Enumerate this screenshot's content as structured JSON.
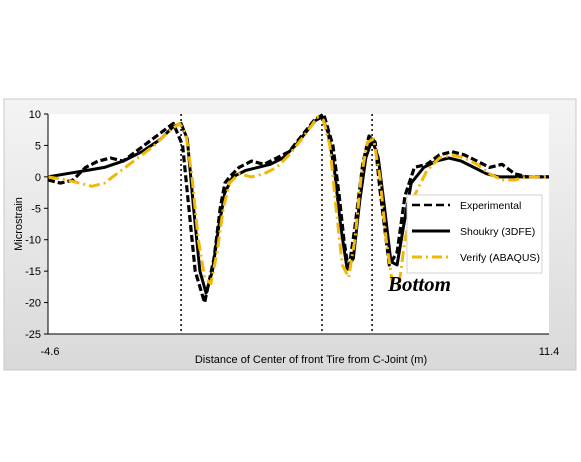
{
  "chart_data": {
    "type": "line",
    "title": "",
    "xlabel": "Distance of Center of front Tire from C-Joint (m)",
    "ylabel": "Microstrain",
    "xlim": [
      -4.6,
      11.4
    ],
    "ylim": [
      -25,
      10
    ],
    "x_tick_labels": [
      "-4.6",
      "11.4"
    ],
    "y_ticks": [
      10,
      5,
      0,
      -5,
      -10,
      -15,
      -20,
      -25
    ],
    "grid": "vertical dotted lines at the peaks",
    "legend_position": "right",
    "annotation": "Bottom",
    "colors": {
      "experimental": "#000000",
      "shoukry": "#000000",
      "verify": "#f2b707",
      "plot_bg": "#ffffff"
    },
    "series": [
      {
        "name": "Experimental",
        "style": "dashed",
        "x": [
          -4.6,
          -4.2,
          -3.8,
          -3.4,
          -3.0,
          -2.6,
          -2.2,
          -1.8,
          -1.4,
          -1.0,
          -0.6,
          -0.3,
          -0.1,
          0.1,
          0.4,
          0.7,
          0.9,
          1.05,
          1.2,
          1.5,
          1.9,
          2.3,
          2.7,
          3.1,
          3.5,
          3.9,
          4.2,
          4.5,
          4.7,
          4.85,
          5.0,
          5.2,
          5.45,
          5.65,
          5.85,
          6.0,
          6.3,
          6.55,
          6.8,
          7.1,
          7.5,
          7.9,
          8.3,
          8.7,
          9.1,
          9.5,
          9.9,
          10.3,
          10.7,
          11.0,
          11.4
        ],
        "y": [
          -0.5,
          -1.0,
          -0.5,
          1.5,
          2.5,
          3.0,
          2.5,
          4.0,
          5.5,
          7.0,
          8.5,
          5.0,
          -5.0,
          -15.0,
          -20.0,
          -13.0,
          -5.0,
          -1.0,
          0.0,
          1.5,
          2.5,
          2.0,
          3.0,
          4.0,
          6.5,
          9.0,
          10.0,
          5.0,
          -3.0,
          -10.0,
          -15.0,
          -8.0,
          2.0,
          6.5,
          5.5,
          -2.0,
          -14.0,
          -12.0,
          -3.0,
          1.5,
          2.0,
          3.5,
          4.0,
          3.5,
          2.5,
          1.5,
          2.0,
          0.5,
          0.0,
          0.0,
          0.0
        ]
      },
      {
        "name": "Shoukry (3DFE)",
        "style": "solid",
        "x": [
          -4.6,
          -4.0,
          -3.4,
          -2.8,
          -2.2,
          -1.6,
          -1.0,
          -0.6,
          -0.35,
          -0.15,
          0.05,
          0.25,
          0.45,
          0.65,
          0.85,
          1.05,
          1.3,
          1.7,
          2.1,
          2.5,
          2.9,
          3.3,
          3.7,
          3.95,
          4.15,
          4.35,
          4.55,
          4.75,
          4.95,
          5.15,
          5.35,
          5.55,
          5.75,
          5.95,
          6.15,
          6.35,
          6.55,
          6.75,
          7.0,
          7.4,
          7.8,
          8.2,
          8.6,
          9.0,
          9.4,
          9.8,
          10.2,
          10.6,
          11.0,
          11.4
        ],
        "y": [
          0.0,
          0.5,
          1.0,
          1.5,
          2.5,
          4.0,
          6.0,
          8.0,
          8.5,
          6.0,
          -5.0,
          -15.0,
          -18.5,
          -15.0,
          -8.0,
          -2.5,
          0.0,
          1.0,
          1.5,
          2.0,
          3.0,
          5.0,
          7.5,
          9.0,
          9.5,
          7.0,
          1.0,
          -8.0,
          -14.5,
          -13.0,
          -4.0,
          3.0,
          6.0,
          3.0,
          -5.0,
          -13.5,
          -14.0,
          -8.0,
          -1.0,
          1.5,
          2.5,
          3.0,
          2.5,
          1.5,
          0.5,
          0.0,
          0.0,
          0.0,
          0.0,
          0.0
        ]
      },
      {
        "name": "Verify (ABAQUS)",
        "style": "dash-dot",
        "x": [
          -4.6,
          -4.0,
          -3.6,
          -3.2,
          -2.8,
          -2.4,
          -2.0,
          -1.6,
          -1.2,
          -0.8,
          -0.4,
          -0.2,
          0.0,
          0.2,
          0.4,
          0.6,
          0.8,
          1.0,
          1.2,
          1.5,
          1.9,
          2.3,
          2.7,
          3.1,
          3.5,
          3.8,
          4.0,
          4.2,
          4.4,
          4.6,
          4.8,
          5.0,
          5.2,
          5.4,
          5.6,
          5.8,
          6.0,
          6.2,
          6.4,
          6.6,
          6.8,
          7.1,
          7.5,
          7.9,
          8.3,
          8.7,
          9.1,
          9.5,
          9.9,
          10.3,
          10.7,
          11.1,
          11.4
        ],
        "y": [
          0.0,
          -0.5,
          -1.0,
          -1.5,
          -1.0,
          0.5,
          2.0,
          3.5,
          5.0,
          7.0,
          8.5,
          7.0,
          0.0,
          -10.0,
          -16.0,
          -17.0,
          -12.0,
          -5.0,
          -1.0,
          0.5,
          0.0,
          0.5,
          1.5,
          3.5,
          6.0,
          8.0,
          9.5,
          9.0,
          5.0,
          -5.0,
          -14.0,
          -16.0,
          -10.0,
          0.0,
          5.5,
          6.0,
          0.0,
          -10.0,
          -17.0,
          -17.5,
          -10.0,
          -3.0,
          1.0,
          3.0,
          3.5,
          3.0,
          2.0,
          0.5,
          -0.5,
          -0.5,
          0.0,
          0.0,
          0.0
        ]
      }
    ]
  }
}
